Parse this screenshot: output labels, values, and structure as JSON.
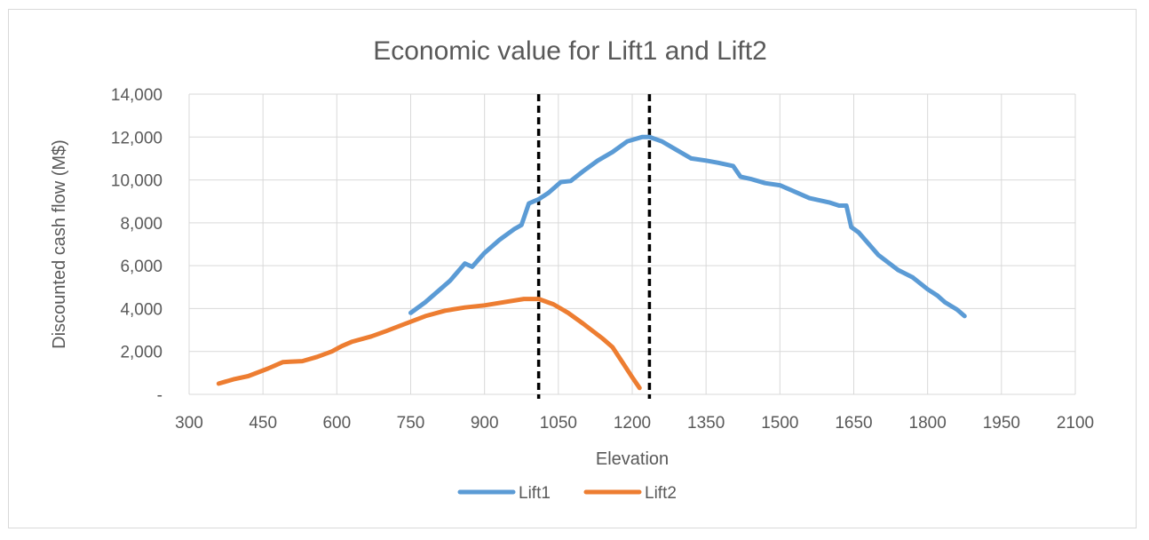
{
  "chart_data": {
    "type": "line",
    "title": "Economic value for Lift1 and Lift2",
    "xlabel": "Elevation",
    "ylabel": "Discounted cash flow (M$)",
    "xlim": [
      300,
      2100
    ],
    "ylim": [
      0,
      14000
    ],
    "x_ticks": [
      300,
      450,
      600,
      750,
      900,
      1050,
      1200,
      1350,
      1500,
      1650,
      1800,
      1950,
      2100
    ],
    "x_tick_labels": [
      "300",
      "450",
      "600",
      "750",
      "900",
      "1050",
      "1200",
      "1350",
      "1500",
      "1650",
      "1800",
      "1950",
      "2100"
    ],
    "y_ticks": [
      0,
      2000,
      4000,
      6000,
      8000,
      10000,
      12000,
      14000
    ],
    "y_tick_labels": [
      "-",
      "2,000",
      "4,000",
      "6,000",
      "8,000",
      "10,000",
      "12,000",
      "14,000"
    ],
    "grid": true,
    "legend_position": "bottom",
    "vertical_lines": [
      1010,
      1235
    ],
    "series": [
      {
        "name": "Lift1",
        "color": "#5b9bd5",
        "points": [
          [
            750,
            3800
          ],
          [
            780,
            4300
          ],
          [
            810,
            4900
          ],
          [
            830,
            5300
          ],
          [
            860,
            6100
          ],
          [
            875,
            5950
          ],
          [
            900,
            6600
          ],
          [
            930,
            7200
          ],
          [
            960,
            7700
          ],
          [
            975,
            7900
          ],
          [
            990,
            8900
          ],
          [
            1010,
            9100
          ],
          [
            1030,
            9400
          ],
          [
            1055,
            9900
          ],
          [
            1075,
            9950
          ],
          [
            1100,
            10400
          ],
          [
            1130,
            10900
          ],
          [
            1160,
            11300
          ],
          [
            1190,
            11800
          ],
          [
            1220,
            12000
          ],
          [
            1235,
            12000
          ],
          [
            1260,
            11800
          ],
          [
            1290,
            11400
          ],
          [
            1320,
            11000
          ],
          [
            1350,
            10900
          ],
          [
            1375,
            10800
          ],
          [
            1405,
            10650
          ],
          [
            1420,
            10150
          ],
          [
            1440,
            10050
          ],
          [
            1470,
            9850
          ],
          [
            1500,
            9750
          ],
          [
            1530,
            9450
          ],
          [
            1560,
            9150
          ],
          [
            1600,
            8950
          ],
          [
            1620,
            8800
          ],
          [
            1635,
            8800
          ],
          [
            1645,
            7800
          ],
          [
            1660,
            7550
          ],
          [
            1700,
            6500
          ],
          [
            1740,
            5800
          ],
          [
            1770,
            5450
          ],
          [
            1800,
            4900
          ],
          [
            1820,
            4600
          ],
          [
            1835,
            4300
          ],
          [
            1860,
            3950
          ],
          [
            1875,
            3650
          ]
        ]
      },
      {
        "name": "Lift2",
        "color": "#ed7d31",
        "points": [
          [
            360,
            500
          ],
          [
            390,
            700
          ],
          [
            420,
            850
          ],
          [
            460,
            1200
          ],
          [
            490,
            1500
          ],
          [
            505,
            1520
          ],
          [
            530,
            1550
          ],
          [
            560,
            1750
          ],
          [
            590,
            2000
          ],
          [
            610,
            2250
          ],
          [
            630,
            2450
          ],
          [
            670,
            2700
          ],
          [
            700,
            2950
          ],
          [
            740,
            3300
          ],
          [
            780,
            3650
          ],
          [
            820,
            3900
          ],
          [
            860,
            4050
          ],
          [
            900,
            4150
          ],
          [
            940,
            4300
          ],
          [
            980,
            4450
          ],
          [
            1010,
            4450
          ],
          [
            1040,
            4200
          ],
          [
            1070,
            3800
          ],
          [
            1100,
            3300
          ],
          [
            1140,
            2600
          ],
          [
            1160,
            2200
          ],
          [
            1180,
            1500
          ],
          [
            1200,
            800
          ],
          [
            1215,
            300
          ]
        ]
      }
    ]
  }
}
